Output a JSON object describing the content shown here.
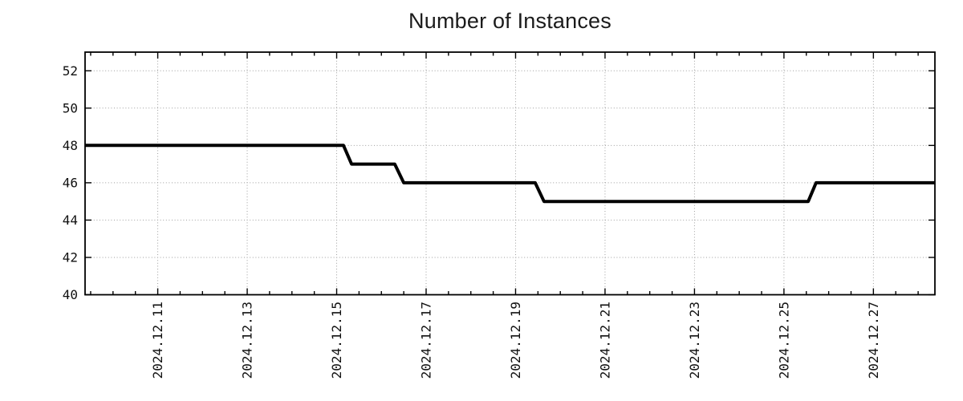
{
  "chart_data": {
    "type": "line",
    "line_style": "step-sampled",
    "title": "Number of Instances",
    "background": "#ffffff",
    "line_color": "#000000",
    "line_width": 4,
    "grid": {
      "show": true,
      "style": "dotted",
      "color": "#9e9e9e"
    },
    "legend": {
      "show": false
    },
    "x_axis": {
      "type": "time",
      "range_start": "2024-12-09 09:00",
      "range_end": "2024-12-28 09:00",
      "major_tick_interval_days": 2,
      "minor_tick_hours": 12,
      "label_rotation_deg": 90,
      "major_ticks": [
        {
          "t": "2024-12-11 00:00",
          "label": "2024.12.11"
        },
        {
          "t": "2024-12-13 00:00",
          "label": "2024.12.13"
        },
        {
          "t": "2024-12-15 00:00",
          "label": "2024.12.15"
        },
        {
          "t": "2024-12-17 00:00",
          "label": "2024.12.17"
        },
        {
          "t": "2024-12-19 00:00",
          "label": "2024.12.19"
        },
        {
          "t": "2024-12-21 00:00",
          "label": "2024.12.21"
        },
        {
          "t": "2024-12-23 00:00",
          "label": "2024.12.23"
        },
        {
          "t": "2024-12-25 00:00",
          "label": "2024.12.25"
        },
        {
          "t": "2024-12-27 00:00",
          "label": "2024.12.27"
        }
      ]
    },
    "y_axis": {
      "min": 40,
      "max": 53,
      "ticks": [
        40,
        42,
        44,
        46,
        48,
        50,
        52
      ]
    },
    "series": [
      {
        "name": "instances",
        "color": "#000000",
        "points": [
          {
            "t": "2024-12-09 09:00",
            "v": 48
          },
          {
            "t": "2024-12-15 03:40",
            "v": 48
          },
          {
            "t": "2024-12-15 08:00",
            "v": 47
          },
          {
            "t": "2024-12-16 07:10",
            "v": 47
          },
          {
            "t": "2024-12-16 12:00",
            "v": 46
          },
          {
            "t": "2024-12-19 10:30",
            "v": 46
          },
          {
            "t": "2024-12-19 15:15",
            "v": 45
          },
          {
            "t": "2024-12-25 13:00",
            "v": 45
          },
          {
            "t": "2024-12-25 17:15",
            "v": 46
          },
          {
            "t": "2024-12-28 09:00",
            "v": 46
          }
        ]
      }
    ]
  }
}
